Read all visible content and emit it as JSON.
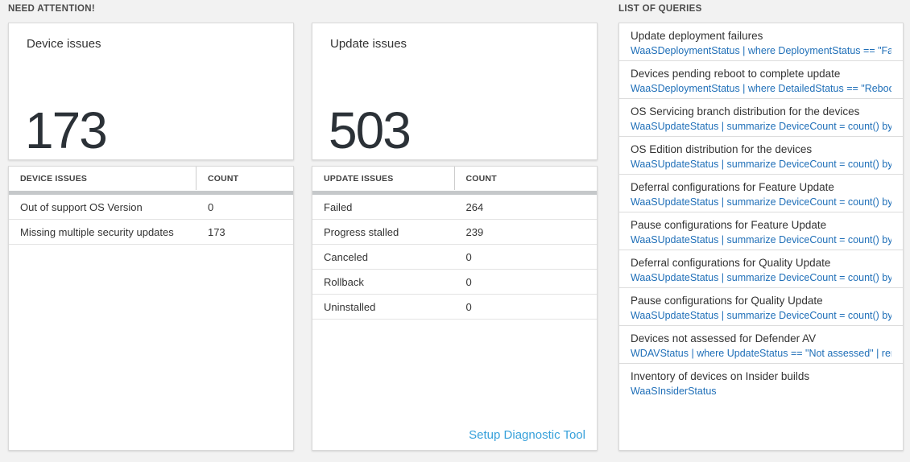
{
  "colors": {
    "page_background": "#f2f2f2",
    "card_background": "#ffffff",
    "big_number": "#2b3137",
    "query_link_blue": "#1f6fb8",
    "setup_link_blue": "#36a0da"
  },
  "need_attention": {
    "header": "NEED ATTENTION!",
    "cards": [
      {
        "title": "Device issues",
        "value": "173",
        "table": {
          "columns": [
            "DEVICE ISSUES",
            "COUNT"
          ],
          "rows": [
            [
              "Out of support OS Version",
              "0"
            ],
            [
              "Missing multiple security updates",
              "173"
            ]
          ]
        }
      },
      {
        "title": "Update issues",
        "value": "503",
        "table": {
          "columns": [
            "UPDATE ISSUES",
            "COUNT"
          ],
          "rows": [
            [
              "Failed",
              "264"
            ],
            [
              "Progress stalled",
              "239"
            ],
            [
              "Canceled",
              "0"
            ],
            [
              "Rollback",
              "0"
            ],
            [
              "Uninstalled",
              "0"
            ]
          ]
        },
        "footer_link": "Setup Diagnostic Tool"
      }
    ]
  },
  "queries": {
    "header": "LIST OF QUERIES",
    "items": [
      {
        "title": "Update deployment failures",
        "query": "WaaSDeploymentStatus | where DeploymentStatus == \"Failed\" |..."
      },
      {
        "title": "Devices pending reboot to complete update",
        "query": "WaaSDeploymentStatus | where DetailedStatus == \"Reboot pend..."
      },
      {
        "title": "OS Servicing branch distribution for the devices",
        "query": "WaaSUpdateStatus | summarize DeviceCount = count() by OSSer..."
      },
      {
        "title": "OS Edition distribution for the devices",
        "query": "WaaSUpdateStatus | summarize DeviceCount = count() by OSEdit..."
      },
      {
        "title": "Deferral configurations for Feature Update",
        "query": "WaaSUpdateStatus | summarize DeviceCount = count() by Featur..."
      },
      {
        "title": "Pause configurations for Feature Update",
        "query": "WaaSUpdateStatus | summarize DeviceCount = count() by Featur..."
      },
      {
        "title": "Deferral configurations for Quality Update",
        "query": "WaaSUpdateStatus | summarize DeviceCount = count() by Qualit..."
      },
      {
        "title": "Pause configurations for Quality Update",
        "query": "WaaSUpdateStatus | summarize DeviceCount = count() by Qualit..."
      },
      {
        "title": "Devices not assessed for Defender AV",
        "query": "WDAVStatus | where UpdateStatus == \"Not assessed\" | render ta..."
      },
      {
        "title": "Inventory of devices on Insider builds",
        "query": "WaaSInsiderStatus"
      }
    ]
  }
}
